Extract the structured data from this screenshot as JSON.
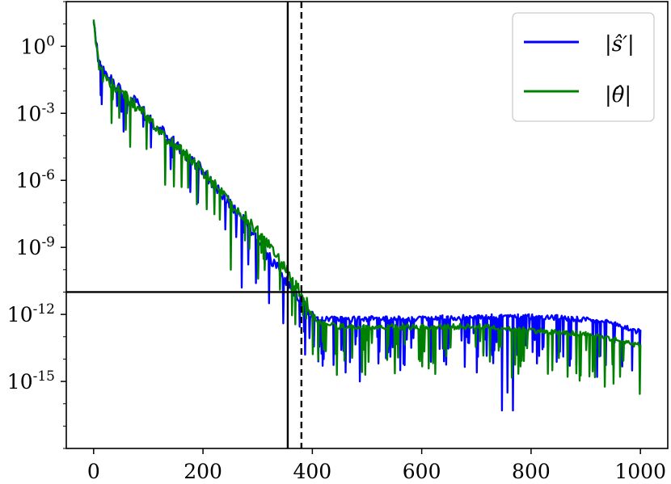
{
  "chart_data": {
    "type": "line",
    "title": "",
    "xlabel": "",
    "ylabel": "",
    "xlim": [
      -50,
      1050
    ],
    "ylim_log10": [
      -18,
      2
    ],
    "y_scale": "log",
    "grid": false,
    "legend_position": "top-right",
    "x_ticks": [
      0,
      200,
      400,
      600,
      800,
      1000
    ],
    "x_tick_labels": [
      "0",
      "200",
      "400",
      "600",
      "800",
      "1000"
    ],
    "y_ticks_log10": [
      0,
      -3,
      -6,
      -9,
      -12,
      -15
    ],
    "y_tick_labels": [
      {
        "base": "10",
        "exp": "0"
      },
      {
        "base": "10",
        "exp": "-3"
      },
      {
        "base": "10",
        "exp": "-6"
      },
      {
        "base": "10",
        "exp": "-9"
      },
      {
        "base": "10",
        "exp": "-12"
      },
      {
        "base": "10",
        "exp": "-15"
      }
    ],
    "reference_lines": {
      "horizontal_y": 1e-11,
      "vertical_solid_x": 355,
      "vertical_dashed_x": 380
    },
    "series": [
      {
        "name": "|ŝ′|",
        "color": "#0000ff",
        "x": [
          0,
          10,
          25,
          50,
          75,
          100,
          125,
          150,
          175,
          200,
          225,
          250,
          275,
          300,
          325,
          350,
          365,
          380,
          395,
          410,
          450,
          500,
          550,
          600,
          650,
          700,
          750,
          800,
          850,
          900,
          950,
          1000
        ],
        "y_log10": [
          1.0,
          -0.8,
          -1.3,
          -2.0,
          -2.5,
          -3.2,
          -3.8,
          -4.4,
          -5.0,
          -5.6,
          -6.3,
          -7.1,
          -7.8,
          -8.7,
          -9.6,
          -10.4,
          -10.9,
          -11.4,
          -11.9,
          -12.2,
          -12.2,
          -12.2,
          -12.2,
          -12.2,
          -12.15,
          -12.15,
          -12.1,
          -12.1,
          -12.15,
          -12.25,
          -12.4,
          -12.8
        ],
        "dip_x": [
          60,
          90,
          140,
          190,
          240,
          270,
          295,
          320,
          345,
          385,
          420,
          460,
          485,
          520,
          560,
          600,
          640,
          700,
          745,
          755,
          765,
          810,
          870,
          920,
          950
        ],
        "dip_y_log10": [
          -3.0,
          -3.6,
          -5.5,
          -7.0,
          -8.2,
          -10.8,
          -10.6,
          -11.5,
          -12.4,
          -13.8,
          -14.0,
          -14.6,
          -15.0,
          -14.2,
          -14.5,
          -14.3,
          -14.1,
          -14.6,
          -16.3,
          -15.5,
          -16.3,
          -14.2,
          -14.3,
          -14.8,
          -14.5
        ]
      },
      {
        "name": "|θ̂|",
        "color": "#008000",
        "x": [
          0,
          10,
          25,
          50,
          75,
          100,
          125,
          150,
          175,
          200,
          225,
          250,
          275,
          300,
          325,
          350,
          365,
          380,
          395,
          410,
          450,
          500,
          550,
          600,
          650,
          700,
          750,
          800,
          850,
          900,
          950,
          1000
        ],
        "y_log10": [
          1.2,
          -1.0,
          -1.5,
          -2.1,
          -2.6,
          -3.3,
          -3.9,
          -4.5,
          -5.0,
          -5.6,
          -6.3,
          -7.0,
          -7.6,
          -8.3,
          -9.1,
          -9.9,
          -10.5,
          -11.1,
          -11.7,
          -12.3,
          -12.55,
          -12.55,
          -12.55,
          -12.55,
          -12.55,
          -12.55,
          -12.6,
          -12.7,
          -12.8,
          -12.9,
          -13.1,
          -13.4
        ],
        "dip_x": [
          15,
          45,
          65,
          95,
          130,
          160,
          205,
          250,
          300,
          340,
          900,
          950
        ],
        "dip_y_log10": [
          -1.6,
          -3.2,
          -4.5,
          -4.6,
          -6.2,
          -6.3,
          -7.3,
          -10.0,
          -10.4,
          -10.9,
          -13.6,
          -15.1
        ]
      }
    ]
  }
}
